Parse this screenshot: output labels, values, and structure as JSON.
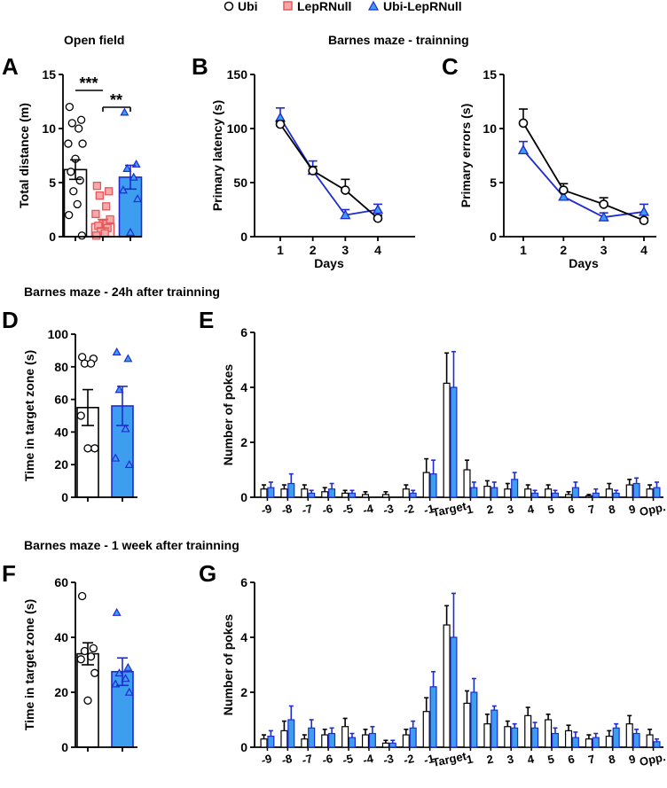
{
  "colors": {
    "ubi": "#000000",
    "lepr": "#e8575a",
    "lepr_fill": "#f7a8a8",
    "ubilepr": "#1f2bd0",
    "ubilepr_fill": "#3d9ef0",
    "bar_white": "#ffffff"
  },
  "legend": [
    "Ubi",
    "LepRNull",
    "Ubi-LepRNull"
  ],
  "sections": {
    "open_field": "Open field",
    "barnes_training": "Barnes maze - trainning",
    "barnes_24h": "Barnes maze - 24h after trainning",
    "barnes_1w": "Barnes maze - 1 week after trainning"
  },
  "chart_data": [
    {
      "panel": "A",
      "type": "bar",
      "title": "Open field",
      "ylabel": "Total distance (m)",
      "ylim": [
        0,
        15
      ],
      "yticks": [
        "0",
        "5",
        "10",
        "15"
      ],
      "groups": [
        "Ubi",
        "LepRNull",
        "Ubi-LepRNull"
      ],
      "means": [
        6.2,
        1.2,
        5.5
      ],
      "sem": [
        0.9,
        0.4,
        1.1
      ],
      "points": [
        [
          12,
          10.8,
          10.5,
          10.0,
          8.6,
          8.6,
          7.2,
          6.0,
          5.2,
          4.2,
          3.0,
          2.0,
          0.1
        ],
        [
          4.7,
          4.2,
          3.8,
          2.8,
          2.1,
          1.6,
          1.2,
          1.0,
          0.8,
          0.5,
          0.3,
          0.1
        ],
        [
          11.5,
          6.7,
          6.3,
          5.5,
          4.3,
          3.5,
          0.4
        ]
      ],
      "significance": [
        "***",
        "**"
      ]
    },
    {
      "panel": "B",
      "type": "line",
      "title": "Barnes maze - trainning",
      "xlabel": "Days",
      "ylabel": "Primary latency (s)",
      "x": [
        1,
        2,
        3,
        4
      ],
      "xticks": [
        "1",
        "2",
        "3",
        "4"
      ],
      "ylim": [
        0,
        150
      ],
      "yticks": [
        "0",
        "50",
        "100",
        "150"
      ],
      "series": [
        {
          "name": "Ubi",
          "values": [
            104,
            61,
            43,
            17
          ],
          "sem": [
            3,
            4,
            10,
            3
          ]
        },
        {
          "name": "Ubi-LepRNull",
          "values": [
            110,
            61,
            20,
            25
          ],
          "sem": [
            9,
            9,
            5,
            5
          ]
        }
      ]
    },
    {
      "panel": "C",
      "type": "line",
      "xlabel": "Days",
      "ylabel": "Primary errors (s)",
      "x": [
        1,
        2,
        3,
        4
      ],
      "xticks": [
        "1",
        "2",
        "3",
        "4"
      ],
      "ylim": [
        0,
        15
      ],
      "yticks": [
        "0",
        "5",
        "10",
        "15"
      ],
      "series": [
        {
          "name": "Ubi",
          "values": [
            10.5,
            4.3,
            3.0,
            1.5
          ],
          "sem": [
            1.3,
            0.6,
            0.6,
            0.2
          ]
        },
        {
          "name": "Ubi-LepRNull",
          "values": [
            8.0,
            3.7,
            1.8,
            2.3
          ],
          "sem": [
            0.8,
            0.4,
            0.4,
            0.7
          ]
        }
      ]
    },
    {
      "panel": "D",
      "type": "bar",
      "title": "Barnes maze - 24h after trainning",
      "ylabel": "Time in target zone (s)",
      "ylim": [
        0,
        100
      ],
      "yticks": [
        "0",
        "20",
        "40",
        "60",
        "80",
        "100"
      ],
      "groups": [
        "Ubi",
        "Ubi-LepRNull"
      ],
      "means": [
        55,
        56
      ],
      "sem": [
        11,
        12
      ],
      "points": [
        [
          86,
          85,
          82,
          82,
          50,
          30,
          30
        ],
        [
          89,
          85,
          66,
          42,
          24,
          20
        ]
      ]
    },
    {
      "panel": "E",
      "type": "bar",
      "ylabel": "Number of pokes",
      "ylim": [
        0,
        6
      ],
      "yticks": [
        "0",
        "2",
        "4",
        "6"
      ],
      "categories": [
        "-9",
        "-8",
        "-7",
        "-6",
        "-5",
        "-4",
        "-3",
        "-2",
        "-1",
        "Target",
        "1",
        "2",
        "3",
        "4",
        "5",
        "6",
        "7",
        "8",
        "9",
        "Opp."
      ],
      "series": [
        {
          "name": "Ubi",
          "values": [
            0.3,
            0.3,
            0.3,
            0.2,
            0.15,
            0.1,
            0.1,
            0.3,
            0.9,
            4.15,
            1.0,
            0.4,
            0.3,
            0.3,
            0.3,
            0.1,
            0.05,
            0.3,
            0.45,
            0.3
          ],
          "sem": [
            0.15,
            0.15,
            0.15,
            0.15,
            0.1,
            0.1,
            0.1,
            0.15,
            0.5,
            1.1,
            0.35,
            0.2,
            0.2,
            0.15,
            0.15,
            0.1,
            0.05,
            0.2,
            0.2,
            0.15
          ]
        },
        {
          "name": "Ubi-LepRNull",
          "values": [
            0.35,
            0.5,
            0.15,
            0.3,
            0.15,
            0.0,
            0.0,
            0.15,
            0.85,
            4.0,
            0.35,
            0.35,
            0.65,
            0.15,
            0.15,
            0.35,
            0.15,
            0.15,
            0.5,
            0.35
          ],
          "sem": [
            0.2,
            0.35,
            0.1,
            0.2,
            0.1,
            0.0,
            0.0,
            0.1,
            0.5,
            1.3,
            0.2,
            0.2,
            0.25,
            0.1,
            0.1,
            0.2,
            0.15,
            0.1,
            0.2,
            0.2
          ]
        }
      ]
    },
    {
      "panel": "F",
      "type": "bar",
      "title": "Barnes maze - 1 week after trainning",
      "ylabel": "Time in target zone (s)",
      "ylim": [
        0,
        60
      ],
      "yticks": [
        "0",
        "20",
        "40",
        "60"
      ],
      "groups": [
        "Ubi",
        "Ubi-LepRNull"
      ],
      "means": [
        34,
        27.5
      ],
      "sem": [
        4,
        5
      ],
      "points": [
        [
          55,
          36,
          35,
          33,
          32,
          27,
          17
        ],
        [
          49,
          29,
          27,
          25,
          23,
          20
        ]
      ]
    },
    {
      "panel": "G",
      "type": "bar",
      "ylabel": "Number of pokes",
      "ylim": [
        0,
        6
      ],
      "yticks": [
        "0",
        "2",
        "4",
        "6"
      ],
      "categories": [
        "-9",
        "-8",
        "-7",
        "-6",
        "-5",
        "-4",
        "-3",
        "-2",
        "-1",
        "Target",
        "1",
        "2",
        "3",
        "4",
        "5",
        "6",
        "7",
        "8",
        "9",
        "Opp."
      ],
      "series": [
        {
          "name": "Ubi",
          "values": [
            0.3,
            0.6,
            0.3,
            0.45,
            0.75,
            0.45,
            0.15,
            0.45,
            1.3,
            4.45,
            1.6,
            0.85,
            0.75,
            1.15,
            1.0,
            0.6,
            0.3,
            0.4,
            0.85,
            0.45
          ],
          "sem": [
            0.15,
            0.35,
            0.15,
            0.2,
            0.3,
            0.2,
            0.1,
            0.2,
            0.5,
            0.7,
            0.45,
            0.35,
            0.2,
            0.3,
            0.2,
            0.2,
            0.15,
            0.2,
            0.3,
            0.2
          ]
        },
        {
          "name": "Ubi-LepRNull",
          "values": [
            0.4,
            1.0,
            0.7,
            0.5,
            0.35,
            0.5,
            0.15,
            0.7,
            2.2,
            4.0,
            2.0,
            1.35,
            0.7,
            0.7,
            0.5,
            0.35,
            0.35,
            0.7,
            0.5,
            0.2
          ],
          "sem": [
            0.2,
            0.5,
            0.3,
            0.2,
            0.15,
            0.25,
            0.1,
            0.25,
            0.55,
            1.6,
            0.5,
            0.15,
            0.15,
            0.2,
            0.2,
            0.2,
            0.15,
            0.15,
            0.15,
            0.1
          ]
        }
      ]
    }
  ]
}
